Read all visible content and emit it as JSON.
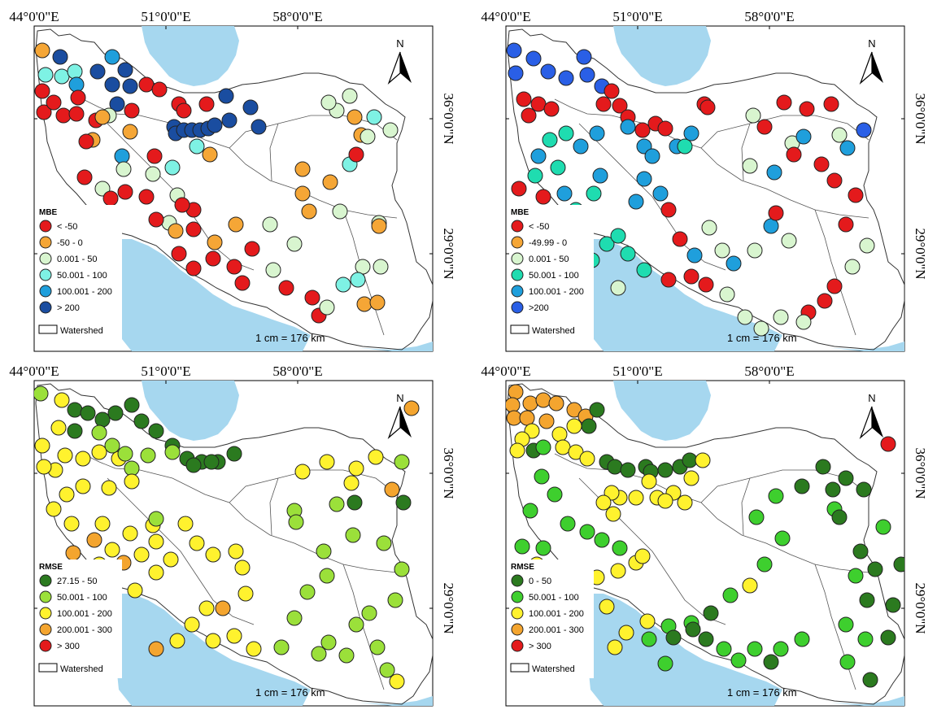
{
  "axes": {
    "lon_ticks": [
      "44°0'0\"E",
      "51°0'0\"E",
      "58°0'0\"E"
    ],
    "lat_ticks": [
      "36°0'0\"N",
      "29°0'0\"N"
    ]
  },
  "north_label": "N",
  "scale_label": "1 cm = 176 km",
  "watershed_label": "Watershed",
  "colors": {
    "sea": "#a6d7ef",
    "c_red": "#e41a1c",
    "c_orange": "#f5a636",
    "c_palegreen": "#d8f5cf",
    "c_cyan": "#7ef2e4",
    "c_blue": "#1f9fdc",
    "c_navy": "#1a4da0",
    "c_teal": "#1fdcb0",
    "c_blue2": "#2a5fe6",
    "c_darkgreen": "#2b7a1f",
    "c_lime": "#9be03a",
    "c_yellow": "#fff22e",
    "c_orange2": "#f4a52f",
    "c_green": "#3ecf2e"
  },
  "panels": [
    {
      "legend_title": "MBE",
      "legend": [
        {
          "label": "< -50",
          "color": "#e41a1c"
        },
        {
          "label": "-50 - 0",
          "color": "#f5a636"
        },
        {
          "label": "0.001 - 50",
          "color": "#d8f5cf"
        },
        {
          "label": "50.001 - 100",
          "color": "#7ef2e4"
        },
        {
          "label": "100.001 - 200",
          "color": "#1f9fdc"
        },
        {
          "label": "> 200",
          "color": "#1a4da0"
        }
      ],
      "stations": [
        [
          10,
          30,
          1
        ],
        [
          32,
          38,
          5
        ],
        [
          14,
          60,
          3
        ],
        [
          34,
          62,
          3
        ],
        [
          50,
          56,
          3
        ],
        [
          52,
          72,
          4
        ],
        [
          78,
          56,
          5
        ],
        [
          96,
          38,
          4
        ],
        [
          96,
          72,
          5
        ],
        [
          112,
          54,
          5
        ],
        [
          118,
          74,
          5
        ],
        [
          102,
          96,
          5
        ],
        [
          120,
          104,
          0
        ],
        [
          92,
          110,
          2
        ],
        [
          10,
          80,
          0
        ],
        [
          12,
          106,
          0
        ],
        [
          36,
          110,
          0
        ],
        [
          24,
          94,
          0
        ],
        [
          54,
          88,
          0
        ],
        [
          52,
          108,
          0
        ],
        [
          76,
          116,
          0
        ],
        [
          138,
          72,
          0
        ],
        [
          154,
          78,
          0
        ],
        [
          178,
          96,
          0
        ],
        [
          184,
          104,
          0
        ],
        [
          212,
          96,
          0
        ],
        [
          236,
          86,
          5
        ],
        [
          172,
          124,
          5
        ],
        [
          174,
          132,
          5
        ],
        [
          184,
          128,
          5
        ],
        [
          194,
          128,
          5
        ],
        [
          204,
          128,
          5
        ],
        [
          214,
          126,
          5
        ],
        [
          222,
          122,
          5
        ],
        [
          240,
          116,
          5
        ],
        [
          266,
          100,
          5
        ],
        [
          276,
          124,
          5
        ],
        [
          84,
          112,
          1
        ],
        [
          72,
          140,
          1
        ],
        [
          118,
          130,
          1
        ],
        [
          108,
          160,
          4
        ],
        [
          110,
          176,
          2
        ],
        [
          64,
          142,
          0
        ],
        [
          62,
          186,
          0
        ],
        [
          112,
          204,
          0
        ],
        [
          84,
          200,
          2
        ],
        [
          94,
          212,
          0
        ],
        [
          148,
          160,
          0
        ],
        [
          146,
          182,
          2
        ],
        [
          138,
          210,
          0
        ],
        [
          170,
          174,
          3
        ],
        [
          176,
          208,
          2
        ],
        [
          196,
          226,
          0
        ],
        [
          196,
          250,
          0
        ],
        [
          216,
          158,
          1
        ],
        [
          200,
          148,
          3
        ],
        [
          166,
          242,
          2
        ],
        [
          174,
          252,
          1
        ],
        [
          182,
          220,
          0
        ],
        [
          222,
          266,
          1
        ],
        [
          248,
          244,
          1
        ],
        [
          268,
          274,
          0
        ],
        [
          290,
          244,
          2
        ],
        [
          320,
          268,
          2
        ],
        [
          338,
          228,
          1
        ],
        [
          330,
          206,
          1
        ],
        [
          376,
          228,
          2
        ],
        [
          388,
          170,
          3
        ],
        [
          424,
          242,
          2
        ],
        [
          330,
          176,
          1
        ],
        [
          364,
          192,
          1
        ],
        [
          396,
          158,
          0
        ],
        [
          402,
          134,
          1
        ],
        [
          438,
          128,
          2
        ],
        [
          418,
          112,
          3
        ],
        [
          394,
          112,
          1
        ],
        [
          372,
          104,
          2
        ],
        [
          362,
          94,
          2
        ],
        [
          388,
          86,
          2
        ],
        [
          410,
          136,
          2
        ],
        [
          150,
          238,
          0
        ],
        [
          178,
          280,
          0
        ],
        [
          220,
          286,
          0
        ],
        [
          246,
          296,
          0
        ],
        [
          256,
          316,
          0
        ],
        [
          294,
          300,
          2
        ],
        [
          310,
          322,
          0
        ],
        [
          342,
          334,
          0
        ],
        [
          350,
          356,
          0
        ],
        [
          360,
          346,
          2
        ],
        [
          380,
          318,
          3
        ],
        [
          404,
          296,
          2
        ],
        [
          398,
          312,
          3
        ],
        [
          406,
          342,
          1
        ],
        [
          422,
          340,
          1
        ],
        [
          424,
          246,
          1
        ],
        [
          426,
          296,
          2
        ],
        [
          196,
          298,
          0
        ]
      ]
    },
    {
      "legend_title": "MBE",
      "legend": [
        {
          "label": "< -50",
          "color": "#e41a1c"
        },
        {
          "label": "-49.99 - 0",
          "color": "#f5a636"
        },
        {
          "label": "0.001 - 50",
          "color": "#d8f5cf"
        },
        {
          "label": "50.001 - 100",
          "color": "#1fdcb0"
        },
        {
          "label": "100.001 - 200",
          "color": "#1f9fdc"
        },
        {
          "label": ">200",
          "color": "#2a5fe6"
        }
      ]
    },
    {
      "legend_title": "RMSE",
      "legend": [
        {
          "label": "27.15 - 50",
          "color": "#2b7a1f"
        },
        {
          "label": "50.001 - 100",
          "color": "#9be03a"
        },
        {
          "label": "100.001 - 200",
          "color": "#fff22e"
        },
        {
          "label": "200.001 - 300",
          "color": "#f4a52f"
        },
        {
          "label": "> 300",
          "color": "#e41a1c"
        }
      ]
    },
    {
      "legend_title": "RMSE",
      "legend": [
        {
          "label": "0 - 50",
          "color": "#2b7a1f"
        },
        {
          "label": "50.001 - 100",
          "color": "#3ecf2e"
        },
        {
          "label": "100.001 - 200",
          "color": "#fff22e"
        },
        {
          "label": "200.001 - 300",
          "color": "#f4a52f"
        },
        {
          "label": "> 300",
          "color": "#e41a1c"
        }
      ]
    }
  ]
}
